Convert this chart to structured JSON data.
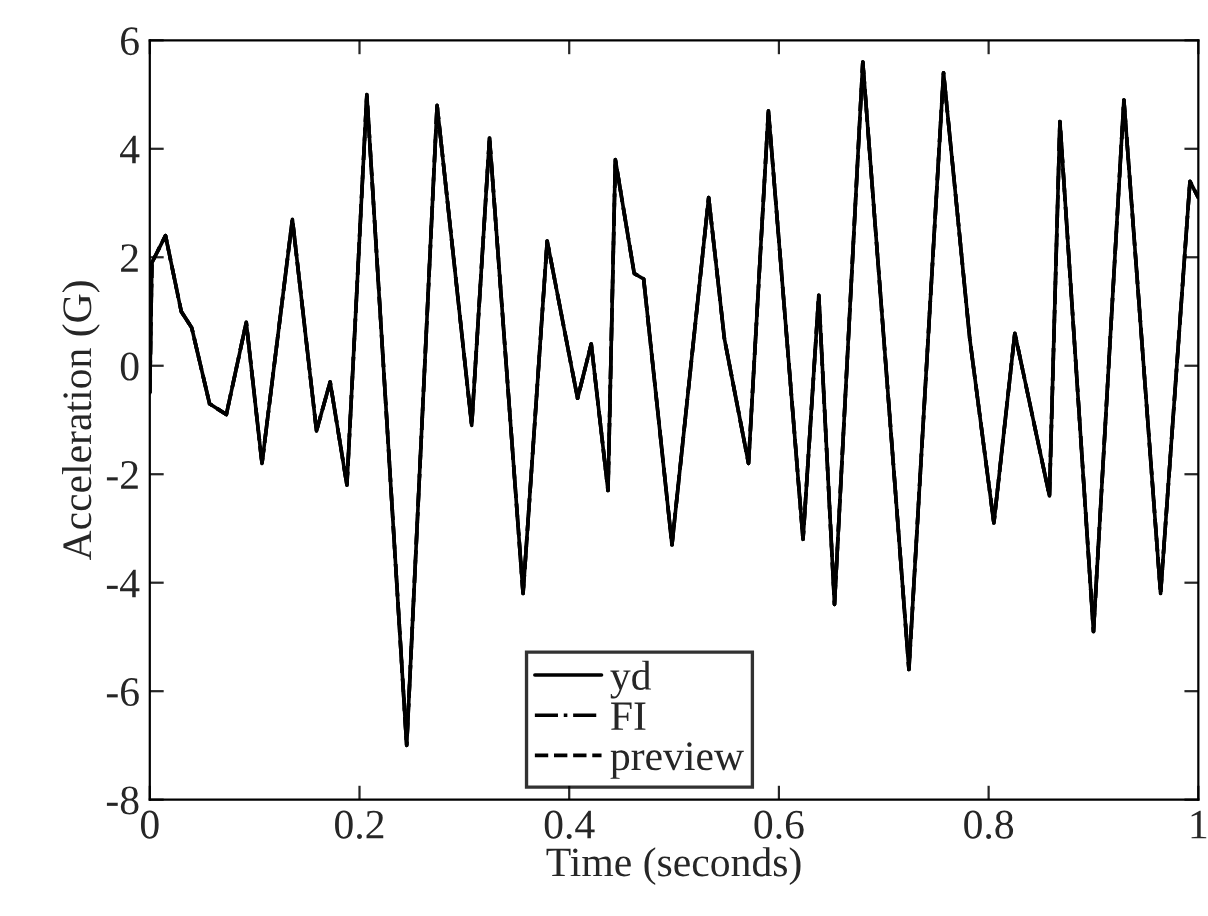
{
  "chart_data": {
    "type": "line",
    "xlabel": "Time (seconds)",
    "ylabel": "Acceleration (G)",
    "x": [
      0,
      0.002,
      0.015,
      0.03,
      0.04,
      0.057,
      0.073,
      0.092,
      0.107,
      0.136,
      0.159,
      0.172,
      0.188,
      0.207,
      0.245,
      0.274,
      0.307,
      0.324,
      0.356,
      0.379,
      0.408,
      0.421,
      0.437,
      0.444,
      0.462,
      0.471,
      0.498,
      0.533,
      0.548,
      0.571,
      0.59,
      0.623,
      0.638,
      0.653,
      0.68,
      0.724,
      0.757,
      0.782,
      0.805,
      0.825,
      0.858,
      0.868,
      0.9,
      0.929,
      0.964,
      0.992,
      1
    ],
    "series": [
      {
        "name": "yd",
        "color": "#000000",
        "line_style": "solid",
        "values": [
          -0.5,
          1.9,
          2.4,
          1.0,
          0.7,
          -0.7,
          -0.9,
          0.8,
          -1.8,
          2.7,
          -1.2,
          -0.3,
          -2.2,
          5.0,
          -7.0,
          4.8,
          -1.1,
          4.2,
          -4.2,
          2.3,
          -0.6,
          0.4,
          -2.3,
          3.8,
          1.7,
          1.6,
          -3.3,
          3.1,
          0.5,
          -1.8,
          4.7,
          -3.2,
          1.3,
          -4.4,
          5.6,
          -5.6,
          5.4,
          0.5,
          -2.9,
          0.6,
          -2.4,
          4.5,
          -4.9,
          4.9,
          -4.2,
          3.4,
          3.1
        ]
      },
      {
        "name": "FI",
        "color": "#000000",
        "line_style": "dashdot",
        "values": [
          -0.5,
          1.9,
          2.4,
          1.0,
          0.7,
          -0.7,
          -0.9,
          0.8,
          -1.8,
          2.7,
          -1.2,
          -0.3,
          -2.2,
          5.0,
          -7.0,
          4.8,
          -1.1,
          4.2,
          -4.2,
          2.3,
          -0.6,
          0.4,
          -2.3,
          3.8,
          1.7,
          1.6,
          -3.3,
          3.1,
          0.5,
          -1.8,
          4.7,
          -3.2,
          1.3,
          -4.4,
          5.6,
          -5.6,
          5.4,
          0.5,
          -2.9,
          0.6,
          -2.4,
          4.5,
          -4.9,
          4.9,
          -4.2,
          3.4,
          3.1
        ]
      },
      {
        "name": "preview",
        "color": "#000000",
        "line_style": "dashed",
        "values": [
          -0.5,
          1.9,
          2.4,
          1.0,
          0.7,
          -0.7,
          -0.9,
          0.8,
          -1.8,
          2.7,
          -1.2,
          -0.3,
          -2.2,
          5.0,
          -7.0,
          4.8,
          -1.1,
          4.2,
          -4.2,
          2.3,
          -0.6,
          0.4,
          -2.3,
          3.8,
          1.7,
          1.6,
          -3.3,
          3.1,
          0.5,
          -1.8,
          4.7,
          -3.2,
          1.3,
          -4.4,
          5.6,
          -5.6,
          5.4,
          0.5,
          -2.9,
          0.6,
          -2.4,
          4.5,
          -4.9,
          4.9,
          -4.2,
          3.4,
          3.1
        ]
      }
    ],
    "xlim": [
      0,
      1
    ],
    "xticks": [
      0,
      0.2,
      0.4,
      0.6,
      0.8,
      1
    ],
    "ylim": [
      -8,
      6
    ],
    "yticks": [
      -8,
      -6,
      -4,
      -2,
      0,
      2,
      4,
      6
    ],
    "grid": false,
    "legend": "bottom"
  }
}
